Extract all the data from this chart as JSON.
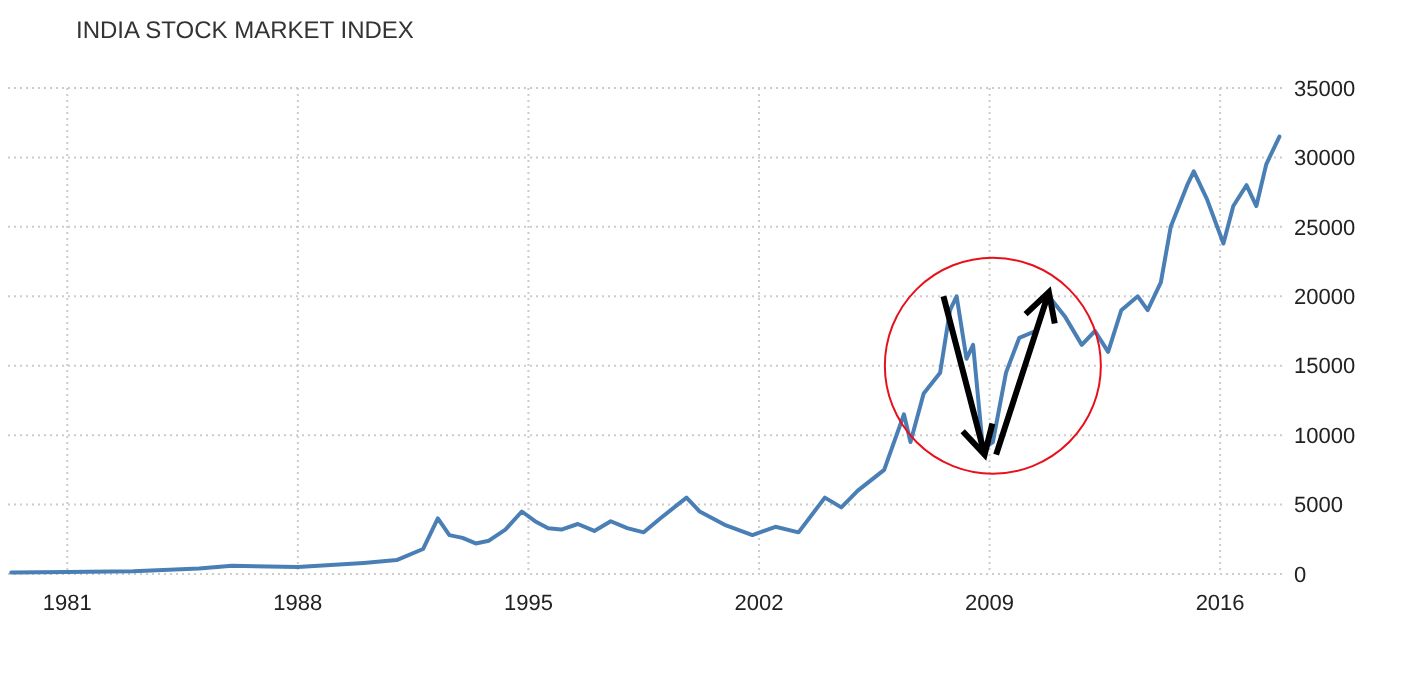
{
  "chart_data": {
    "type": "line",
    "title": "INDIA STOCK MARKET INDEX",
    "x": [
      1979.3,
      1981,
      1983,
      1985,
      1986,
      1988,
      1990,
      1991,
      1991.8,
      1992.25,
      1992.6,
      1993,
      1993.4,
      1993.8,
      1994.3,
      1994.8,
      1995.2,
      1995.6,
      1996,
      1996.5,
      1997,
      1997.5,
      1998,
      1998.5,
      1999,
      1999.8,
      2000.2,
      2001,
      2001.8,
      2002.5,
      2003.2,
      2004,
      2004.5,
      2005,
      2005.8,
      2006.4,
      2006.6,
      2007,
      2007.5,
      2007.8,
      2008,
      2008.3,
      2008.5,
      2008.8,
      2009.1,
      2009.5,
      2009.9,
      2010.4,
      2010.8,
      2011.3,
      2011.8,
      2012.2,
      2012.6,
      2013,
      2013.5,
      2013.8,
      2014.2,
      2014.5,
      2015,
      2015.2,
      2015.6,
      2016.1,
      2016.4,
      2016.8,
      2017.1,
      2017.4,
      2017.8
    ],
    "values": [
      100,
      150,
      200,
      400,
      600,
      500,
      800,
      1000,
      1800,
      4000,
      2800,
      2600,
      2200,
      2400,
      3200,
      4500,
      3800,
      3300,
      3200,
      3600,
      3100,
      3800,
      3300,
      3000,
      4000,
      5500,
      4500,
      3500,
      2800,
      3400,
      3000,
      5500,
      4800,
      6000,
      7500,
      11500,
      9500,
      13000,
      14500,
      19000,
      20000,
      15500,
      16500,
      9000,
      9500,
      14500,
      17000,
      17500,
      20000,
      18500,
      16500,
      17500,
      16000,
      19000,
      20000,
      19000,
      21000,
      25000,
      28000,
      29000,
      27000,
      23800,
      26500,
      28000,
      26500,
      29500,
      31500
    ],
    "color": "#4a7fb5",
    "xlim": [
      1979.2,
      2018
    ],
    "xticks": [
      1981,
      1988,
      1995,
      2002,
      2009,
      2016
    ],
    "ylim": [
      0,
      35000
    ],
    "yticks": [
      0,
      5000,
      10000,
      15000,
      20000,
      25000,
      30000,
      35000
    ],
    "grid": true
  }
}
